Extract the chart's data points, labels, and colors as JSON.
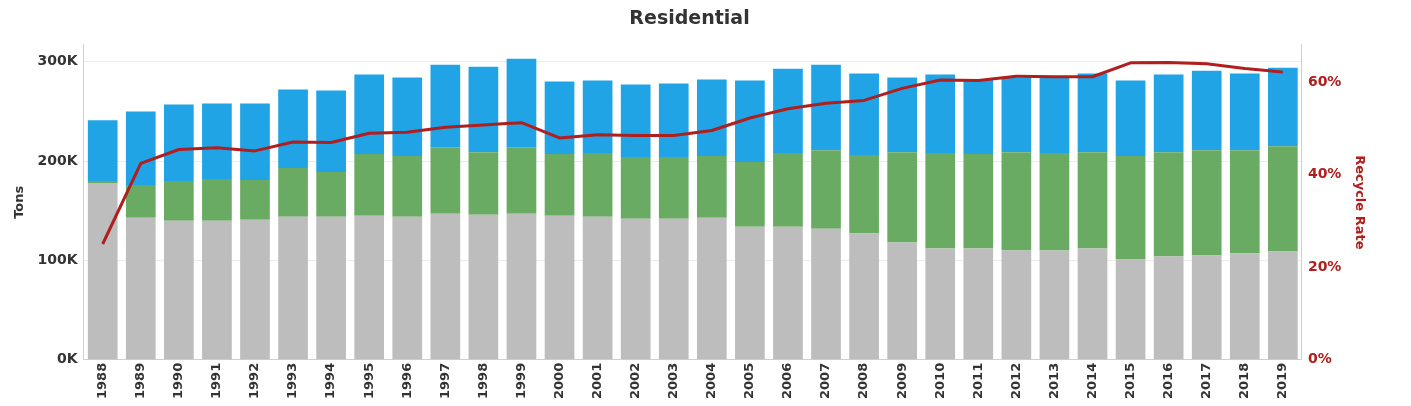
{
  "chart_data": {
    "type": "bar",
    "title": "Residential",
    "ylabel": "Tons",
    "y2label": "Recycle Rate",
    "categories": [
      "1988",
      "1989",
      "1990",
      "1991",
      "1992",
      "1993",
      "1994",
      "1995",
      "1996",
      "1997",
      "1998",
      "1999",
      "2000",
      "2001",
      "2002",
      "2003",
      "2004",
      "2005",
      "2006",
      "2007",
      "2008",
      "2009",
      "2010",
      "2011",
      "2012",
      "2013",
      "2014",
      "2015",
      "2016",
      "2017",
      "2018",
      "2019"
    ],
    "stacked": true,
    "series": [
      {
        "color": "#bcbdbc",
        "values": [
          178000,
          143000,
          140000,
          140000,
          141000,
          144000,
          144000,
          145000,
          144000,
          147000,
          146000,
          147000,
          145000,
          144000,
          142000,
          142000,
          143000,
          134000,
          134000,
          132000,
          127000,
          118000,
          112000,
          112000,
          110000,
          110000,
          112000,
          101000,
          104000,
          105000,
          107000,
          109000
        ]
      },
      {
        "color": "#6aab63",
        "values": [
          2000,
          33000,
          40000,
          42000,
          40000,
          49000,
          45000,
          62000,
          61000,
          67000,
          63000,
          67000,
          62000,
          64000,
          62000,
          62000,
          62000,
          65000,
          74000,
          79000,
          79000,
          91000,
          96000,
          95000,
          99000,
          98000,
          97000,
          104000,
          105000,
          106000,
          104000,
          106000
        ]
      },
      {
        "color": "#20a4e6",
        "values": [
          61000,
          74000,
          77000,
          76000,
          77000,
          79000,
          82000,
          80000,
          79000,
          83000,
          86000,
          89000,
          73000,
          73000,
          73000,
          74000,
          77000,
          82000,
          85000,
          86000,
          82000,
          75000,
          79000,
          75000,
          75000,
          76000,
          79000,
          76000,
          78000,
          80000,
          77000,
          79000
        ]
      },
      {
        "type": "line",
        "axis": "y2",
        "color": "#b01e1e",
        "values": [
          25.0,
          42.4,
          45.4,
          45.8,
          45.1,
          47.0,
          46.9,
          48.9,
          49.1,
          50.2,
          50.7,
          51.2,
          47.9,
          48.6,
          48.4,
          48.4,
          49.5,
          52.2,
          54.2,
          55.4,
          56.0,
          58.6,
          60.4,
          60.3,
          61.2,
          61.1,
          61.1,
          64.1,
          64.2,
          63.9,
          62.9,
          62.1
        ]
      }
    ],
    "ylim": [
      0,
      317000
    ],
    "yticks": [
      {
        "value": 0,
        "label": "0K"
      },
      {
        "value": 100000,
        "label": "100K"
      },
      {
        "value": 200000,
        "label": "200K"
      },
      {
        "value": 300000,
        "label": "300K"
      }
    ],
    "y2lim": [
      0,
      68
    ],
    "y2ticks": [
      {
        "value": 0,
        "label": "0%"
      },
      {
        "value": 20,
        "label": "20%"
      },
      {
        "value": 40,
        "label": "40%"
      },
      {
        "value": 60,
        "label": "60%"
      }
    ],
    "grid": "y",
    "legend": false,
    "marker": "none",
    "line_style": "solid"
  }
}
